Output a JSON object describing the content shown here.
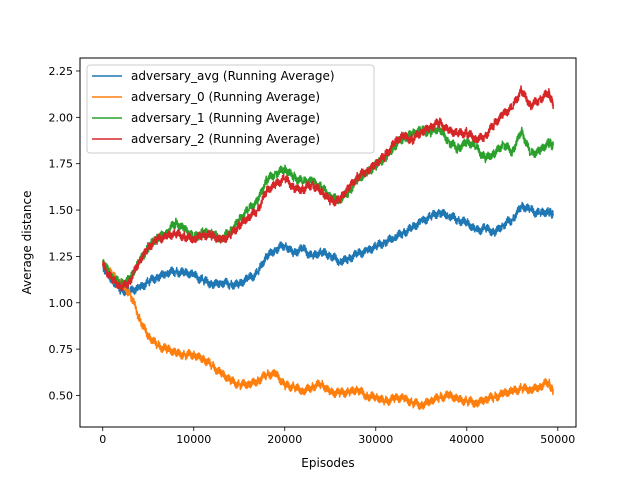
{
  "chart_data": {
    "type": "line",
    "xlabel": "Episodes",
    "ylabel": "Average distance",
    "xlim": [
      -2500,
      52000
    ],
    "ylim": [
      0.33,
      2.32
    ],
    "xticks": [
      0,
      10000,
      20000,
      30000,
      40000,
      50000
    ],
    "xtick_labels": [
      "0",
      "10000",
      "20000",
      "30000",
      "40000",
      "50000"
    ],
    "yticks": [
      0.5,
      0.75,
      1.0,
      1.25,
      1.5,
      1.75,
      2.0,
      2.25
    ],
    "ytick_labels": [
      "0.50",
      "0.75",
      "1.00",
      "1.25",
      "1.50",
      "1.75",
      "2.00",
      "2.25"
    ],
    "grid": false,
    "legend_position": "top-left",
    "x": [
      0,
      1000,
      2000,
      3000,
      4000,
      5000,
      6000,
      7000,
      8000,
      9000,
      10000,
      11000,
      12000,
      13000,
      14000,
      15000,
      16000,
      17000,
      18000,
      19000,
      20000,
      21000,
      22000,
      23000,
      24000,
      25000,
      26000,
      27000,
      28000,
      29000,
      30000,
      31000,
      32000,
      33000,
      34000,
      35000,
      36000,
      37000,
      38000,
      39000,
      40000,
      41000,
      42000,
      43000,
      44000,
      45000,
      46000,
      47000,
      48000,
      49000,
      49500
    ],
    "series": [
      {
        "name": "adversary_avg (Running Average)",
        "color": "#1f77b4",
        "values": [
          1.2,
          1.12,
          1.07,
          1.06,
          1.08,
          1.11,
          1.14,
          1.16,
          1.17,
          1.16,
          1.15,
          1.12,
          1.1,
          1.11,
          1.1,
          1.1,
          1.13,
          1.16,
          1.25,
          1.29,
          1.31,
          1.27,
          1.29,
          1.25,
          1.27,
          1.26,
          1.22,
          1.24,
          1.26,
          1.28,
          1.3,
          1.33,
          1.35,
          1.38,
          1.4,
          1.44,
          1.46,
          1.49,
          1.47,
          1.45,
          1.43,
          1.39,
          1.4,
          1.38,
          1.42,
          1.45,
          1.52,
          1.5,
          1.48,
          1.49,
          1.48
        ]
      },
      {
        "name": "adversary_0 (Running Average)",
        "color": "#ff7f0e",
        "values": [
          1.21,
          1.15,
          1.1,
          1.05,
          0.92,
          0.82,
          0.77,
          0.75,
          0.73,
          0.72,
          0.72,
          0.7,
          0.66,
          0.62,
          0.58,
          0.56,
          0.56,
          0.58,
          0.61,
          0.62,
          0.55,
          0.55,
          0.52,
          0.55,
          0.56,
          0.52,
          0.51,
          0.52,
          0.53,
          0.5,
          0.49,
          0.47,
          0.48,
          0.49,
          0.46,
          0.45,
          0.47,
          0.49,
          0.5,
          0.48,
          0.47,
          0.46,
          0.48,
          0.49,
          0.51,
          0.52,
          0.54,
          0.53,
          0.55,
          0.57,
          0.52
        ]
      },
      {
        "name": "adversary_1 (Running Average)",
        "color": "#2ca02c",
        "values": [
          1.23,
          1.14,
          1.1,
          1.13,
          1.22,
          1.3,
          1.35,
          1.38,
          1.43,
          1.4,
          1.35,
          1.38,
          1.37,
          1.35,
          1.38,
          1.45,
          1.5,
          1.55,
          1.66,
          1.7,
          1.72,
          1.68,
          1.65,
          1.66,
          1.62,
          1.58,
          1.55,
          1.6,
          1.66,
          1.7,
          1.74,
          1.78,
          1.84,
          1.89,
          1.91,
          1.93,
          1.92,
          1.94,
          1.87,
          1.83,
          1.87,
          1.84,
          1.78,
          1.8,
          1.86,
          1.81,
          1.93,
          1.8,
          1.82,
          1.86,
          1.85
        ]
      },
      {
        "name": "adversary_2 (Running Average)",
        "color": "#d62728",
        "values": [
          1.2,
          1.13,
          1.08,
          1.12,
          1.22,
          1.3,
          1.34,
          1.36,
          1.37,
          1.36,
          1.34,
          1.37,
          1.36,
          1.34,
          1.36,
          1.42,
          1.46,
          1.5,
          1.6,
          1.64,
          1.67,
          1.62,
          1.61,
          1.64,
          1.6,
          1.55,
          1.55,
          1.62,
          1.68,
          1.71,
          1.75,
          1.79,
          1.86,
          1.9,
          1.88,
          1.92,
          1.95,
          1.97,
          1.93,
          1.91,
          1.92,
          1.88,
          1.9,
          1.96,
          2.02,
          2.05,
          2.15,
          2.06,
          2.1,
          2.13,
          2.07
        ]
      }
    ]
  }
}
